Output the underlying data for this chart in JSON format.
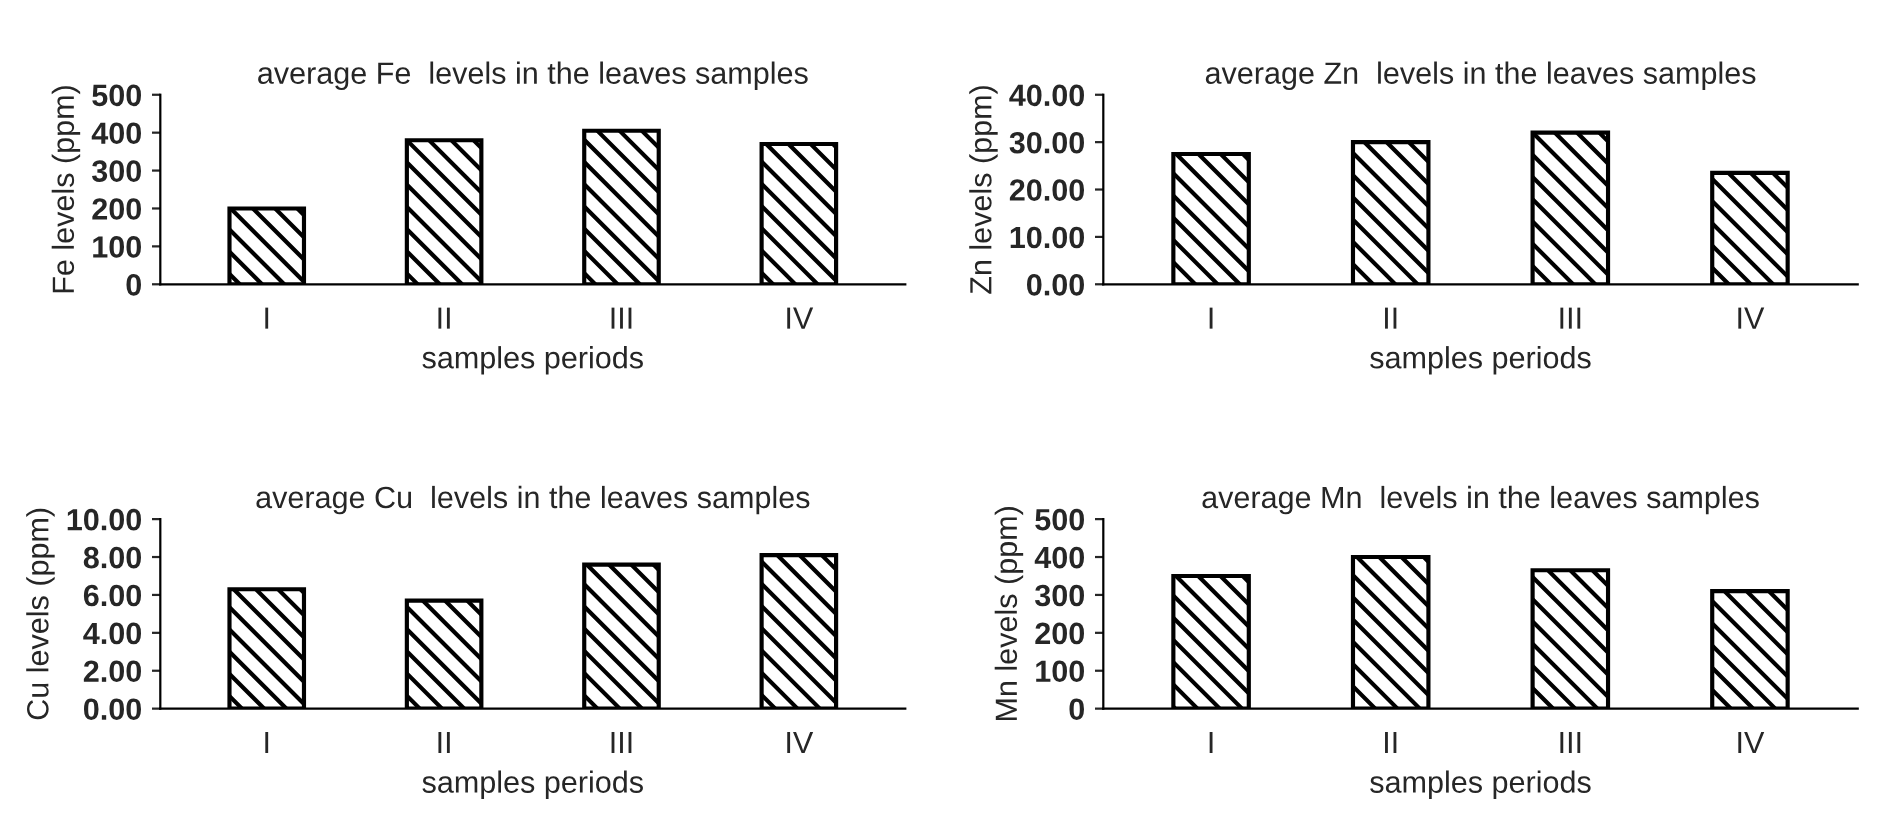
{
  "chart_data": [
    {
      "type": "bar",
      "title": "average Fe  levels in the leaves samples",
      "xlabel": "samples periods",
      "ylabel": "Fe levels (ppm)",
      "categories": [
        "I",
        "II",
        "III",
        "IV"
      ],
      "values": [
        200,
        380,
        405,
        370
      ],
      "color": "#000000",
      "ylim": [
        0,
        500
      ],
      "yticks": [
        0,
        100,
        200,
        300,
        400,
        500
      ],
      "grid": false
    },
    {
      "type": "bar",
      "title": "average Zn  levels in the leaves samples",
      "xlabel": "samples periods",
      "ylabel": "Zn levels (ppm)",
      "categories": [
        "I",
        "II",
        "III",
        "IV"
      ],
      "values": [
        27.5,
        30,
        32,
        23.5
      ],
      "color": "#000000",
      "ylim": [
        0,
        40
      ],
      "yticks": [
        {
          "value": 0,
          "label": "0.00"
        },
        {
          "value": 10,
          "label": "10.00"
        },
        {
          "value": 20,
          "label": "20.00"
        },
        {
          "value": 30,
          "label": "30.00"
        },
        {
          "value": 40,
          "label": "40.00"
        }
      ],
      "grid": false
    },
    {
      "type": "bar",
      "title": "average Cu  levels in the leaves samples",
      "xlabel": "samples periods",
      "ylabel": "Cu levels (ppm)",
      "categories": [
        "I",
        "II",
        "III",
        "IV"
      ],
      "values": [
        6.3,
        5.7,
        7.6,
        8.1
      ],
      "color": "#000000",
      "ylim": [
        0,
        10
      ],
      "yticks": [
        {
          "value": 0,
          "label": "0.00"
        },
        {
          "value": 2,
          "label": "2.00"
        },
        {
          "value": 4,
          "label": "4.00"
        },
        {
          "value": 6,
          "label": "6.00"
        },
        {
          "value": 8,
          "label": "8.00"
        },
        {
          "value": 10,
          "label": "10.00"
        }
      ],
      "grid": false
    },
    {
      "type": "bar",
      "title": "average Mn  levels in the leaves samples",
      "xlabel": "samples periods",
      "ylabel": "Mn levels (ppm)",
      "categories": [
        "I",
        "II",
        "III",
        "IV"
      ],
      "values": [
        350,
        400,
        365,
        310
      ],
      "color": "#000000",
      "ylim": [
        0,
        500
      ],
      "yticks": [
        0,
        100,
        200,
        300,
        400,
        500
      ],
      "grid": false
    }
  ]
}
